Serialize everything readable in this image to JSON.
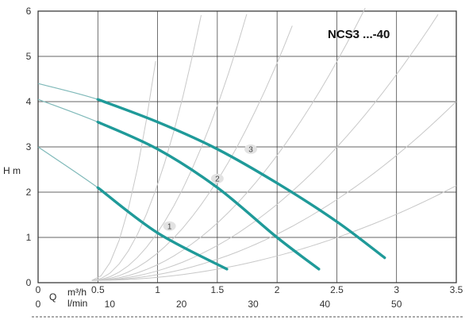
{
  "chart_data": {
    "type": "line",
    "title": "NCS3 ...-40",
    "ylabel": "H m",
    "xlabel_primary": "Q",
    "x_units_primary": "m³/h",
    "x_units_secondary": "l/min",
    "xlim": [
      0,
      3.5
    ],
    "ylim": [
      0,
      6
    ],
    "x_ticks": [
      "0",
      "0.5",
      "1",
      "1.5",
      "2",
      "2.5",
      "3",
      "3.5"
    ],
    "y_ticks": [
      "0",
      "1",
      "2",
      "3",
      "4",
      "5",
      "6"
    ],
    "x2_ticks": [
      "0",
      "10",
      "20",
      "30",
      "40",
      "50"
    ],
    "grid": true,
    "series": [
      {
        "name": "1",
        "x": [
          0,
          0.5,
          1.0,
          1.58
        ],
        "y": [
          3.0,
          2.1,
          1.1,
          0.3
        ]
      },
      {
        "name": "2",
        "x": [
          0,
          0.5,
          1.0,
          1.5,
          2.0,
          2.35
        ],
        "y": [
          4.05,
          3.55,
          2.95,
          2.1,
          1.0,
          0.3
        ]
      },
      {
        "name": "3",
        "x": [
          0,
          0.5,
          1.0,
          1.5,
          2.0,
          2.5,
          2.9
        ],
        "y": [
          4.4,
          4.05,
          3.55,
          2.95,
          2.2,
          1.35,
          0.55
        ]
      }
    ]
  }
}
